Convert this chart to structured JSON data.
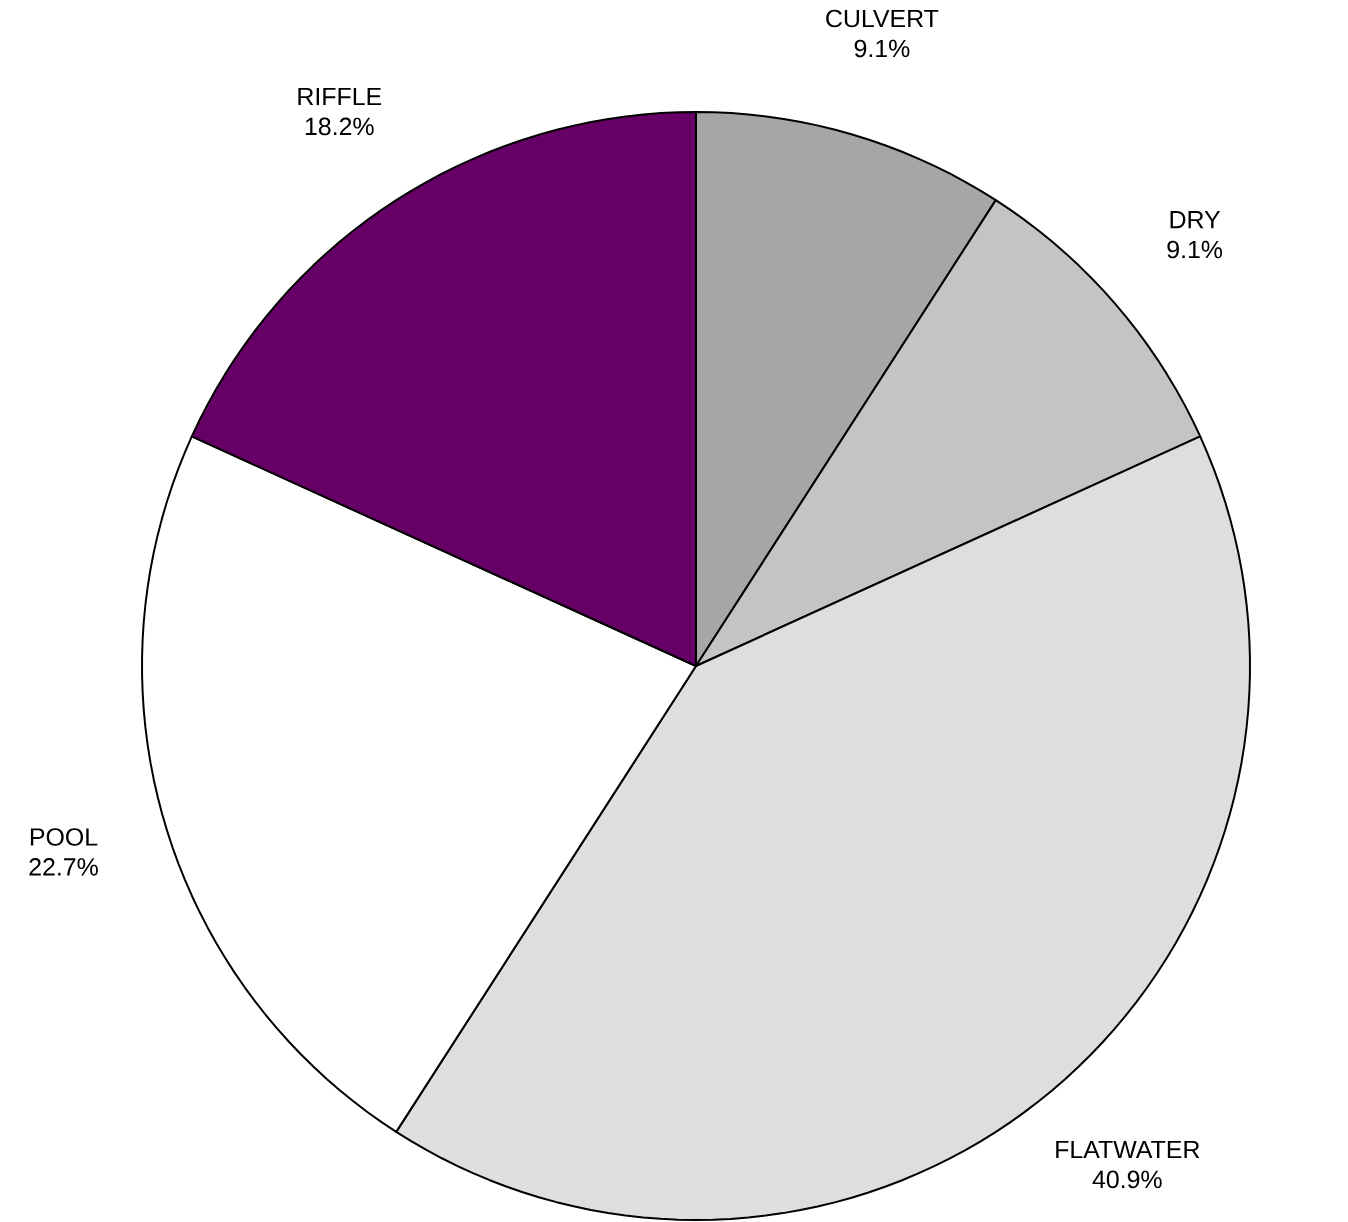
{
  "chart_data": {
    "type": "pie",
    "categories": [
      "CULVERT",
      "DRY",
      "FLATWATER",
      "POOL",
      "RIFFLE"
    ],
    "values": [
      9.1,
      9.1,
      40.9,
      22.7,
      18.2
    ],
    "value_labels": [
      "9.1%",
      "9.1%",
      "40.9%",
      "22.7%",
      "18.2%"
    ],
    "colors": [
      "#a6a6a6",
      "#c4c4c4",
      "#dedede",
      "#ffffff",
      "#660066"
    ]
  }
}
